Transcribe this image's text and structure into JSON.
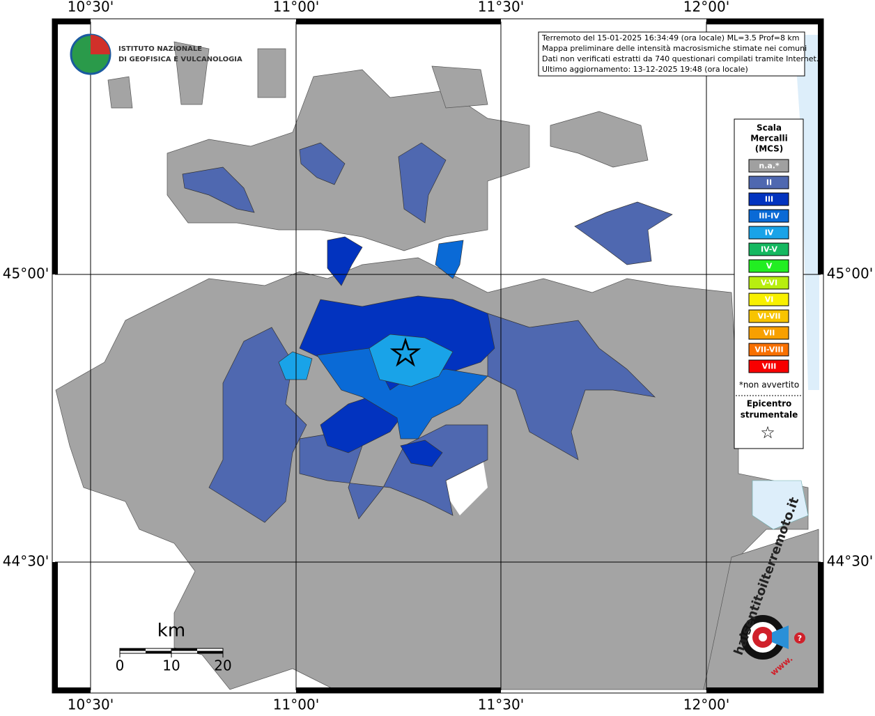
{
  "map": {
    "lon_labels": [
      "10°30'",
      "11°00'",
      "11°30'",
      "12°00'"
    ],
    "lat_labels": [
      "45°00'",
      "44°30'"
    ],
    "logo": [
      "ISTITUTO NAZIONALE",
      "DI GEOFISICA E VULCANOLOGIA"
    ],
    "info": [
      "Terremoto del 15-01-2025 16:34:49 (ora locale) ML=3.5 Prof=8 km",
      "Mappa preliminare delle intensità macrosismiche stimate nei comuni",
      "Dati non verificati estratti da 740 questionari compilati tramite Internet.",
      "Ultimo aggiornamento: 13-12-2025 19:48 (ora locale)"
    ],
    "legend": {
      "title": [
        "Scala",
        "Mercalli",
        "(MCS)"
      ],
      "items": [
        {
          "label": "n.a.*",
          "color": "#a0a0a0"
        },
        {
          "label": "II",
          "color": "#4f68b0"
        },
        {
          "label": "III",
          "color": "#0233bf"
        },
        {
          "label": "III-IV",
          "color": "#0a6ad6"
        },
        {
          "label": "IV",
          "color": "#19a3e8"
        },
        {
          "label": "IV-V",
          "color": "#14b860"
        },
        {
          "label": "V",
          "color": "#22ee22"
        },
        {
          "label": "V-VI",
          "color": "#b8ee10"
        },
        {
          "label": "VI",
          "color": "#f8f000"
        },
        {
          "label": "VI-VII",
          "color": "#f8c400"
        },
        {
          "label": "VII",
          "color": "#f8a000"
        },
        {
          "label": "VII-VIII",
          "color": "#f87000"
        },
        {
          "label": "VIII",
          "color": "#f80000"
        }
      ],
      "note": "*non avvertito",
      "epicenter": [
        "Epicentro",
        "strumentale"
      ],
      "star": "☆"
    },
    "scale": {
      "unit": "km",
      "ticks": [
        0,
        10,
        20
      ]
    },
    "watermark": {
      "site": "haisentitoilterremoto.it",
      "prefix": "www.",
      "icon": "?"
    }
  }
}
